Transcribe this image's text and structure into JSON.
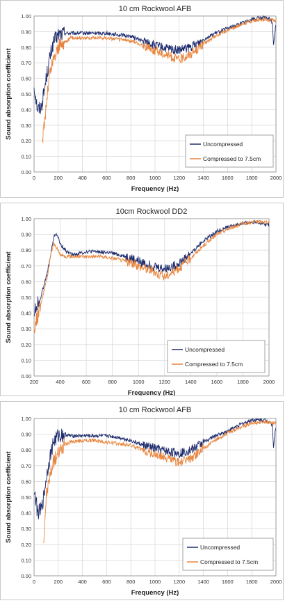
{
  "chart_data": [
    {
      "type": "line",
      "title": "10 cm Rockwool AFB",
      "xlabel": "Frequency (Hz)",
      "ylabel": "Sound absorption coefficient",
      "xlim": [
        0,
        2000
      ],
      "ylim": [
        0,
        1
      ],
      "x_ticks": [
        "0",
        "200",
        "400",
        "600",
        "800",
        "1000",
        "1200",
        "1400",
        "1600",
        "1800",
        "2000"
      ],
      "y_ticks": [
        "0.00",
        "0.10",
        "0.20",
        "0.30",
        "0.40",
        "0.50",
        "0.60",
        "0.70",
        "0.80",
        "0.90",
        "1.00"
      ],
      "grid": true,
      "legend_position": "bottom-right",
      "series": [
        {
          "name": "Uncompressed",
          "color": "#1f2d6e",
          "x": [
            0,
            30,
            60,
            80,
            100,
            130,
            160,
            200,
            250,
            300,
            400,
            500,
            600,
            700,
            800,
            900,
            1000,
            1100,
            1200,
            1300,
            1400,
            1500,
            1600,
            1700,
            1800,
            1900,
            1950,
            1970,
            1980,
            2000
          ],
          "y": [
            0.55,
            0.4,
            0.42,
            0.5,
            0.6,
            0.73,
            0.83,
            0.88,
            0.89,
            0.89,
            0.89,
            0.89,
            0.89,
            0.88,
            0.87,
            0.84,
            0.81,
            0.79,
            0.78,
            0.8,
            0.85,
            0.89,
            0.92,
            0.95,
            0.98,
            0.99,
            0.98,
            0.96,
            0.82,
            0.95
          ]
        },
        {
          "name": "Compressed to 7.5cm",
          "color": "#e8843c",
          "x": [
            70,
            90,
            110,
            130,
            160,
            200,
            250,
            300,
            400,
            500,
            600,
            700,
            800,
            900,
            1000,
            1100,
            1200,
            1300,
            1400,
            1500,
            1600,
            1700,
            1800,
            1900,
            2000
          ],
          "y": [
            0.2,
            0.35,
            0.5,
            0.63,
            0.72,
            0.8,
            0.83,
            0.86,
            0.86,
            0.86,
            0.86,
            0.85,
            0.84,
            0.81,
            0.78,
            0.75,
            0.72,
            0.76,
            0.82,
            0.87,
            0.91,
            0.94,
            0.97,
            0.98,
            0.97
          ]
        }
      ]
    },
    {
      "type": "line",
      "title": "10cm Rockwool DD2",
      "xlabel": "Frequency (Hz)",
      "ylabel": "Sound absorption coefficient",
      "xlim": [
        200,
        2000
      ],
      "ylim": [
        0,
        1
      ],
      "x_ticks": [
        "200",
        "400",
        "600",
        "800",
        "1000",
        "1200",
        "1400",
        "1600",
        "1800",
        "2000"
      ],
      "y_ticks": [
        "0.00",
        "0.10",
        "0.20",
        "0.30",
        "0.40",
        "0.50",
        "0.60",
        "0.70",
        "0.80",
        "0.90",
        "1.00"
      ],
      "grid": true,
      "legend_position": "bottom-right",
      "series": [
        {
          "name": "Uncompressed",
          "color": "#1f2d6e",
          "x": [
            200,
            250,
            300,
            330,
            350,
            370,
            400,
            450,
            500,
            600,
            700,
            800,
            900,
            1000,
            1100,
            1200,
            1300,
            1400,
            1500,
            1600,
            1700,
            1800,
            1900,
            2000
          ],
          "y": [
            0.4,
            0.5,
            0.65,
            0.78,
            0.88,
            0.91,
            0.84,
            0.79,
            0.77,
            0.79,
            0.79,
            0.78,
            0.76,
            0.73,
            0.7,
            0.68,
            0.71,
            0.78,
            0.86,
            0.92,
            0.95,
            0.97,
            0.98,
            0.96
          ]
        },
        {
          "name": "Compressed to 7.5cm",
          "color": "#e8843c",
          "x": [
            200,
            250,
            300,
            330,
            350,
            370,
            400,
            450,
            500,
            600,
            700,
            800,
            900,
            1000,
            1100,
            1200,
            1300,
            1400,
            1500,
            1600,
            1700,
            1800,
            1900,
            2000
          ],
          "y": [
            0.3,
            0.45,
            0.62,
            0.78,
            0.84,
            0.82,
            0.77,
            0.76,
            0.76,
            0.76,
            0.76,
            0.75,
            0.73,
            0.7,
            0.67,
            0.63,
            0.68,
            0.75,
            0.83,
            0.9,
            0.94,
            0.97,
            0.98,
            0.98
          ]
        }
      ]
    },
    {
      "type": "line",
      "title": "10 cm Rockwool AFB",
      "xlabel": "Frequency (Hz)",
      "ylabel": "Sound absorption coefficient",
      "xlim": [
        0,
        2000
      ],
      "ylim": [
        0,
        1
      ],
      "x_ticks": [
        "0",
        "200",
        "400",
        "600",
        "800",
        "1000",
        "1200",
        "1400",
        "1600",
        "1800",
        "2000"
      ],
      "y_ticks": [
        "0.00",
        "0.10",
        "0.20",
        "0.30",
        "0.40",
        "0.50",
        "0.60",
        "0.70",
        "0.80",
        "0.90",
        "1.00"
      ],
      "grid": true,
      "legend_position": "bottom-right",
      "series": [
        {
          "name": "Uncompressed",
          "color": "#1f2d6e",
          "x": [
            0,
            30,
            60,
            80,
            100,
            130,
            160,
            200,
            250,
            300,
            400,
            500,
            600,
            700,
            800,
            900,
            1000,
            1100,
            1200,
            1300,
            1400,
            1500,
            1600,
            1700,
            1800,
            1900,
            1950,
            1970,
            1980,
            2000
          ],
          "y": [
            0.55,
            0.4,
            0.42,
            0.5,
            0.62,
            0.75,
            0.85,
            0.89,
            0.9,
            0.89,
            0.89,
            0.89,
            0.89,
            0.88,
            0.86,
            0.83,
            0.81,
            0.79,
            0.78,
            0.8,
            0.85,
            0.89,
            0.92,
            0.96,
            0.99,
            0.99,
            0.98,
            0.96,
            0.82,
            0.96
          ]
        },
        {
          "name": "Compressed to 7.5cm",
          "color": "#e8843c",
          "x": [
            80,
            100,
            130,
            160,
            200,
            250,
            300,
            400,
            500,
            600,
            700,
            800,
            900,
            1000,
            1100,
            1200,
            1300,
            1400,
            1500,
            1600,
            1700,
            1800,
            1900,
            2000
          ],
          "y": [
            0.22,
            0.5,
            0.63,
            0.72,
            0.78,
            0.83,
            0.85,
            0.86,
            0.86,
            0.85,
            0.84,
            0.83,
            0.8,
            0.77,
            0.75,
            0.72,
            0.75,
            0.81,
            0.86,
            0.91,
            0.94,
            0.97,
            0.98,
            0.97
          ]
        }
      ]
    }
  ]
}
